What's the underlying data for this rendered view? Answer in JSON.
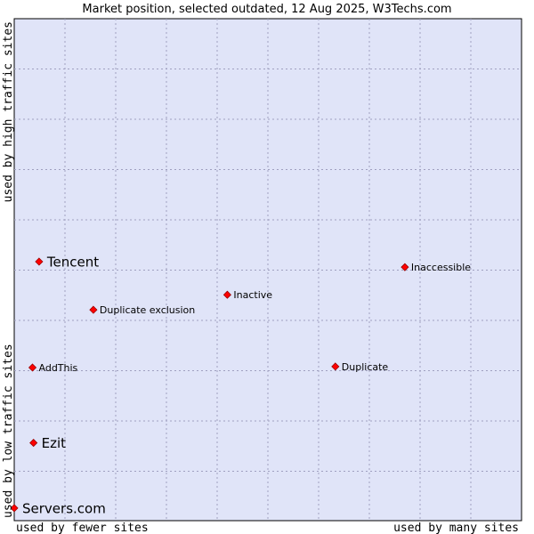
{
  "chart_data": {
    "type": "scatter",
    "title": "Market position, selected outdated, 12 Aug 2025, W3Techs.com",
    "x_axis": {
      "low_label": "used by fewer sites",
      "high_label": "used by many sites"
    },
    "y_axis": {
      "low_label": "used by low traffic sites",
      "high_label": "used by high traffic sites"
    },
    "grid": true,
    "xlim": [
      0,
      1
    ],
    "ylim": [
      0,
      1
    ],
    "points": [
      {
        "label": "Tencent",
        "x": 0.049,
        "y": 0.516,
        "emphasis": "large"
      },
      {
        "label": "Inaccessible",
        "x": 0.77,
        "y": 0.505,
        "emphasis": "small"
      },
      {
        "label": "Inactive",
        "x": 0.42,
        "y": 0.45,
        "emphasis": "small"
      },
      {
        "label": "Duplicate exclusion",
        "x": 0.156,
        "y": 0.42,
        "emphasis": "small"
      },
      {
        "label": "AddThis",
        "x": 0.036,
        "y": 0.305,
        "emphasis": "small"
      },
      {
        "label": "Duplicate",
        "x": 0.633,
        "y": 0.307,
        "emphasis": "small"
      },
      {
        "label": "Ezit",
        "x": 0.038,
        "y": 0.155,
        "emphasis": "large"
      },
      {
        "label": "Servers.com",
        "x": 0.0,
        "y": 0.025,
        "emphasis": "large"
      }
    ],
    "colors": {
      "plot_background": "#e0e4f8",
      "point_fill": "#ff0000",
      "point_stroke": "#990000"
    }
  }
}
